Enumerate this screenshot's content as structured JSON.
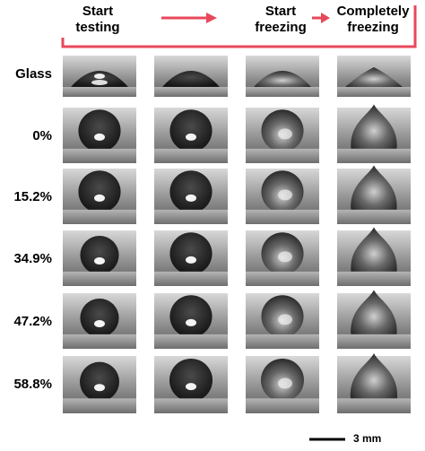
{
  "header": {
    "start_testing": "Start testing",
    "start_freezing": "Start freezing",
    "completely_freezing": "Completely freezing"
  },
  "rows": [
    "Glass",
    "0%",
    "15.2%",
    "34.9%",
    "47.2%",
    "58.8%"
  ],
  "scale_bar": "3 mm"
}
